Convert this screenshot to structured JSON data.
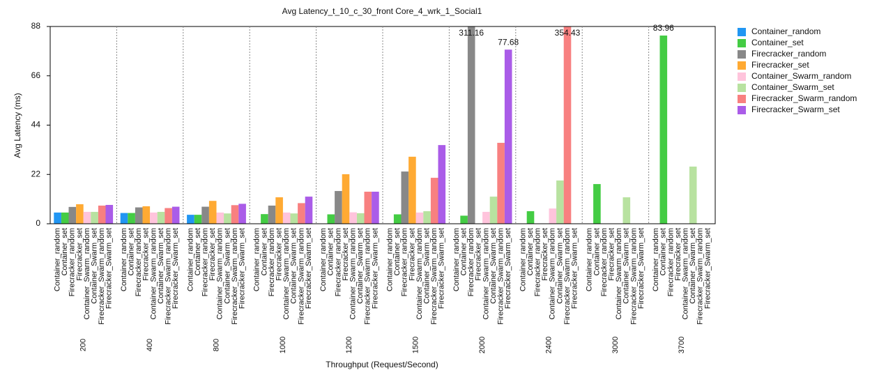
{
  "chart_data": {
    "type": "bar",
    "title": "Avg Latency_t_10_c_30_front Core_4_wrk_1_Social1",
    "x_label": "Throughput (Request/Second)",
    "y_label": "Avg Latency (ms)",
    "categories": [
      "200",
      "400",
      "800",
      "1000",
      "1200",
      "1500",
      "2000",
      "2400",
      "3000",
      "3700"
    ],
    "ylim": [
      0,
      88
    ],
    "yticks": [
      0,
      22,
      44,
      66,
      88
    ],
    "grid": false,
    "legend": "outside-top-right",
    "series": [
      {
        "name": "Container_random",
        "color": "#2196f3",
        "values": [
          5.0,
          4.8,
          4.0,
          null,
          null,
          null,
          null,
          null,
          null,
          null
        ]
      },
      {
        "name": "Container_set",
        "color": "#44cc44",
        "values": [
          5.0,
          4.8,
          4.0,
          4.3,
          4.2,
          4.2,
          3.6,
          5.6,
          17.7,
          83.96
        ],
        "value_labels": [
          null,
          null,
          null,
          null,
          null,
          null,
          null,
          null,
          null,
          "83.96"
        ]
      },
      {
        "name": "Firecracker_random",
        "color": "#888888",
        "values": [
          7.5,
          7.3,
          7.6,
          8.1,
          14.6,
          23.3,
          311.16,
          null,
          null,
          null
        ],
        "value_labels": [
          null,
          null,
          null,
          null,
          null,
          null,
          "311.16",
          null,
          null,
          null
        ]
      },
      {
        "name": "Firecracker_set",
        "color": "#ffaa33",
        "values": [
          8.7,
          7.8,
          10.2,
          11.8,
          22.1,
          29.9,
          null,
          null,
          null,
          null
        ]
      },
      {
        "name": "Container_Swarm_random",
        "color": "#ffc4dc",
        "values": [
          5.3,
          5.0,
          5.0,
          5.0,
          5.1,
          5.0,
          5.3,
          6.8,
          null,
          null
        ]
      },
      {
        "name": "Container_Swarm_set",
        "color": "#b8e2a0",
        "values": [
          5.3,
          5.3,
          4.6,
          4.6,
          4.7,
          5.6,
          12.1,
          19.3,
          11.8,
          25.5
        ]
      },
      {
        "name": "Firecracker_Swarm_random",
        "color": "#f88080",
        "values": [
          8.1,
          7.0,
          8.3,
          9.2,
          14.3,
          20.5,
          36.1,
          354.43,
          null,
          null
        ],
        "value_labels": [
          null,
          null,
          null,
          null,
          null,
          null,
          null,
          "354.43",
          null,
          null
        ]
      },
      {
        "name": "Firecracker_Swarm_set",
        "color": "#aa5ce8",
        "values": [
          8.4,
          7.6,
          8.9,
          12.1,
          14.3,
          35.1,
          77.68,
          null,
          null,
          null
        ],
        "value_labels": [
          null,
          null,
          null,
          null,
          null,
          null,
          "77.68",
          null,
          null,
          null
        ]
      }
    ]
  }
}
